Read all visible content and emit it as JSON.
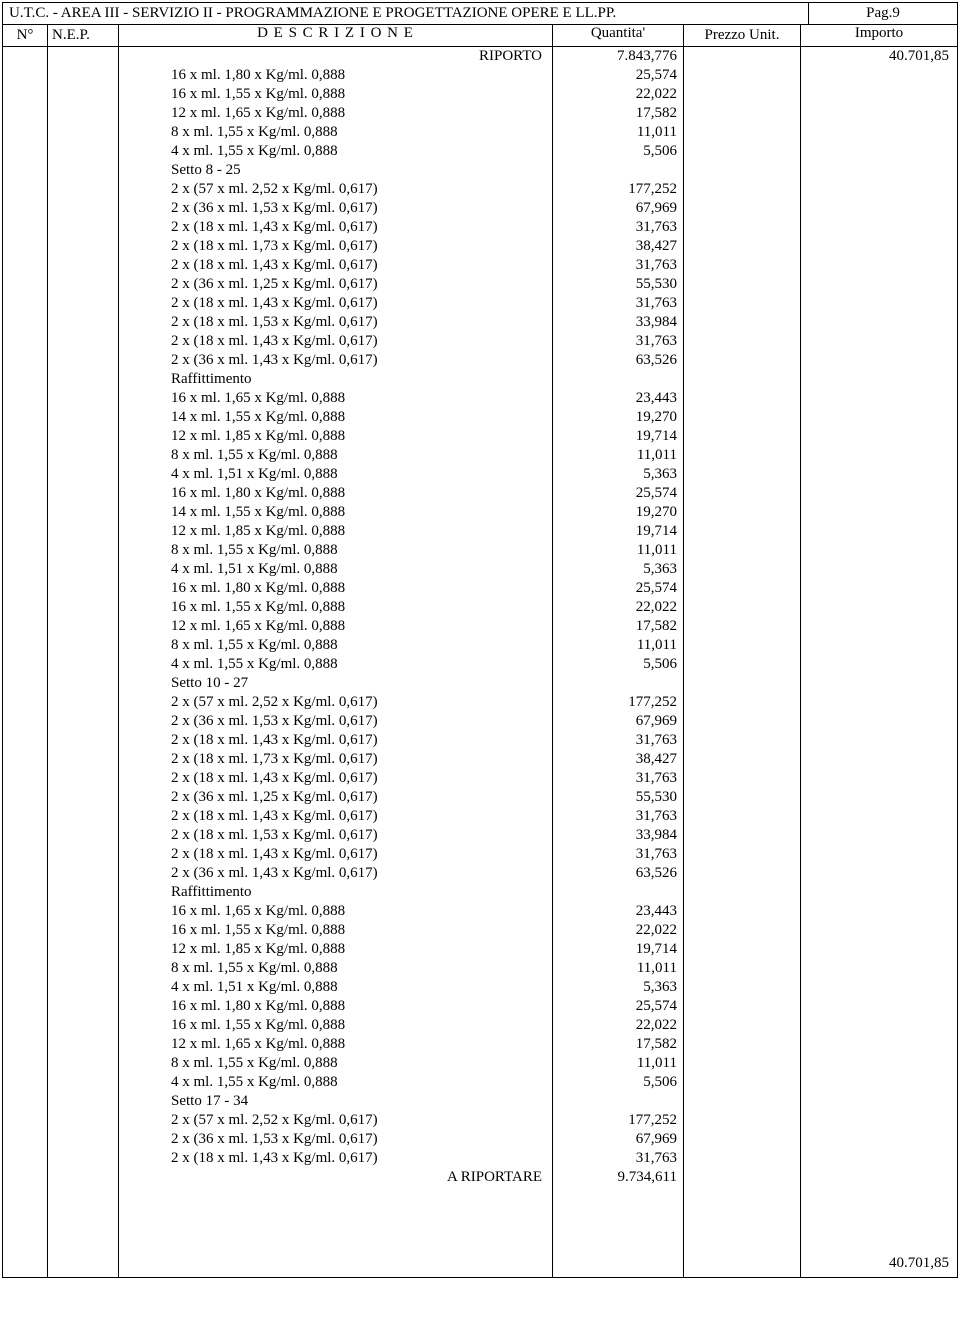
{
  "header": {
    "title": "U.T.C. - AREA III - SERVIZIO II - PROGRAMMAZIONE E PROGETTAZIONE OPERE E LL.PP.",
    "page": "Pag.9"
  },
  "columns": {
    "n": "N°",
    "nep": "N.E.P.",
    "desc": "D E S C R I Z I O N E",
    "qty": "Quantita'",
    "pu": "Prezzo Unit.",
    "imp": "Importo"
  },
  "riporto": {
    "label": "RIPORTO",
    "qty": "7.843,776",
    "imp": "40.701,85"
  },
  "ariportare": {
    "label": "A RIPORTARE",
    "qty": "9.734,611",
    "imp": "40.701,85"
  },
  "rows": [
    {
      "d": "16 x ml. 1,80 x Kg/ml.  0,888",
      "q": "25,574"
    },
    {
      "d": "16 x ml. 1,55 x Kg/ml.  0,888",
      "q": "22,022"
    },
    {
      "d": "12 x ml. 1,65 x Kg/ml.  0,888",
      "q": "17,582"
    },
    {
      "d": "8 x ml. 1,55 x Kg/ml.  0,888",
      "q": "11,011"
    },
    {
      "d": "4 x ml. 1,55 x Kg/ml.  0,888",
      "q": "5,506"
    },
    {
      "d": "Setto 8 - 25",
      "q": ""
    },
    {
      "d": "2 x (57 x ml. 2,52 x Kg/ml.  0,617)",
      "q": "177,252"
    },
    {
      "d": "2 x (36 x ml. 1,53 x Kg/ml.  0,617)",
      "q": "67,969"
    },
    {
      "d": "2 x (18 x ml. 1,43 x Kg/ml.  0,617)",
      "q": "31,763"
    },
    {
      "d": "2 x (18 x ml. 1,73 x Kg/ml.  0,617)",
      "q": "38,427"
    },
    {
      "d": "2 x (18 x ml. 1,43 x Kg/ml.  0,617)",
      "q": "31,763"
    },
    {
      "d": "2 x (36 x ml. 1,25 x Kg/ml.  0,617)",
      "q": "55,530"
    },
    {
      "d": "2 x (18 x ml. 1,43 x Kg/ml.  0,617)",
      "q": "31,763"
    },
    {
      "d": "2 x (18 x ml. 1,53 x Kg/ml.  0,617)",
      "q": "33,984"
    },
    {
      "d": "2 x (18 x ml. 1,43 x Kg/ml.  0,617)",
      "q": "31,763"
    },
    {
      "d": "2 x (36 x ml. 1,43 x Kg/ml.  0,617)",
      "q": "63,526"
    },
    {
      "d": "Raffittimento",
      "q": ""
    },
    {
      "d": "16 x ml. 1,65 x Kg/ml.  0,888",
      "q": "23,443"
    },
    {
      "d": "14 x ml. 1,55 x Kg/ml.  0,888",
      "q": "19,270"
    },
    {
      "d": "12 x ml. 1,85 x Kg/ml.  0,888",
      "q": "19,714"
    },
    {
      "d": "8 x ml. 1,55 x Kg/ml.  0,888",
      "q": "11,011"
    },
    {
      "d": "4 x ml. 1,51 x Kg/ml.  0,888",
      "q": "5,363"
    },
    {
      "d": "16 x ml. 1,80 x Kg/ml.  0,888",
      "q": "25,574"
    },
    {
      "d": "14 x ml. 1,55 x Kg/ml.  0,888",
      "q": "19,270"
    },
    {
      "d": "12 x ml. 1,85 x Kg/ml.  0,888",
      "q": "19,714"
    },
    {
      "d": "8 x ml. 1,55 x Kg/ml.  0,888",
      "q": "11,011"
    },
    {
      "d": "4 x ml. 1,51 x Kg/ml.  0,888",
      "q": "5,363"
    },
    {
      "d": "16 x ml. 1,80 x Kg/ml.  0,888",
      "q": "25,574"
    },
    {
      "d": "16 x ml. 1,55 x Kg/ml.  0,888",
      "q": "22,022"
    },
    {
      "d": "12 x ml. 1,65 x Kg/ml.  0,888",
      "q": "17,582"
    },
    {
      "d": "8 x ml. 1,55 x Kg/ml.  0,888",
      "q": "11,011"
    },
    {
      "d": "4 x ml. 1,55 x Kg/ml.  0,888",
      "q": "5,506"
    },
    {
      "d": "Setto 10 - 27",
      "q": ""
    },
    {
      "d": "2 x (57 x ml. 2,52 x Kg/ml.  0,617)",
      "q": "177,252"
    },
    {
      "d": "2 x (36 x ml. 1,53 x Kg/ml.  0,617)",
      "q": "67,969"
    },
    {
      "d": "2 x (18 x ml. 1,43 x Kg/ml.  0,617)",
      "q": "31,763"
    },
    {
      "d": "2 x (18 x ml. 1,73 x Kg/ml.  0,617)",
      "q": "38,427"
    },
    {
      "d": "2 x (18 x ml. 1,43 x Kg/ml.  0,617)",
      "q": "31,763"
    },
    {
      "d": "2 x (36 x ml. 1,25 x Kg/ml.  0,617)",
      "q": "55,530"
    },
    {
      "d": "2 x (18 x ml. 1,43 x Kg/ml.  0,617)",
      "q": "31,763"
    },
    {
      "d": "2 x (18 x ml. 1,53 x Kg/ml.  0,617)",
      "q": "33,984"
    },
    {
      "d": "2 x (18 x ml. 1,43 x Kg/ml.  0,617)",
      "q": "31,763"
    },
    {
      "d": "2 x (36 x ml. 1,43 x Kg/ml.  0,617)",
      "q": "63,526"
    },
    {
      "d": "Raffittimento",
      "q": ""
    },
    {
      "d": "16 x ml. 1,65 x Kg/ml.  0,888",
      "q": "23,443"
    },
    {
      "d": "16 x ml. 1,55 x Kg/ml.  0,888",
      "q": "22,022"
    },
    {
      "d": "12 x ml. 1,85 x Kg/ml.  0,888",
      "q": "19,714"
    },
    {
      "d": "8 x ml. 1,55 x Kg/ml.  0,888",
      "q": "11,011"
    },
    {
      "d": "4 x ml. 1,51 x Kg/ml.  0,888",
      "q": "5,363"
    },
    {
      "d": "16 x ml. 1,80 x Kg/ml.  0,888",
      "q": "25,574"
    },
    {
      "d": "16 x ml. 1,55 x Kg/ml.  0,888",
      "q": "22,022"
    },
    {
      "d": "12 x ml. 1,65 x Kg/ml.  0,888",
      "q": "17,582"
    },
    {
      "d": "8 x ml. 1,55 x Kg/ml.  0,888",
      "q": "11,011"
    },
    {
      "d": "4 x ml. 1,55 x Kg/ml.  0,888",
      "q": "5,506"
    },
    {
      "d": "Setto 17 - 34",
      "q": ""
    },
    {
      "d": "2 x (57 x ml. 2,52 x Kg/ml.  0,617)",
      "q": "177,252"
    },
    {
      "d": "2 x (36 x ml. 1,53 x Kg/ml.  0,617)",
      "q": "67,969"
    },
    {
      "d": "2 x (18 x ml. 1,43 x Kg/ml.  0,617)",
      "q": "31,763"
    }
  ]
}
